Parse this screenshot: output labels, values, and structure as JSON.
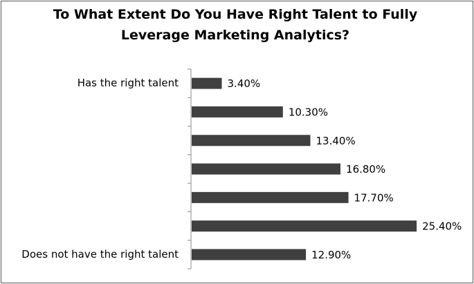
{
  "chart_data": {
    "type": "bar",
    "orientation": "horizontal",
    "title": "To What Extent Do You Have Right Talent to Fully Leverage Marketing Analytics?",
    "categories": [
      "Has the right talent",
      null,
      null,
      null,
      null,
      null,
      "Does not have the right talent"
    ],
    "values": [
      3.4,
      10.3,
      13.4,
      16.8,
      17.7,
      25.4,
      12.9
    ],
    "value_labels": [
      "3.40%",
      "10.30%",
      "13.40%",
      "16.80%",
      "17.70%",
      "25.40%",
      "12.90%"
    ],
    "color": "#404040"
  }
}
